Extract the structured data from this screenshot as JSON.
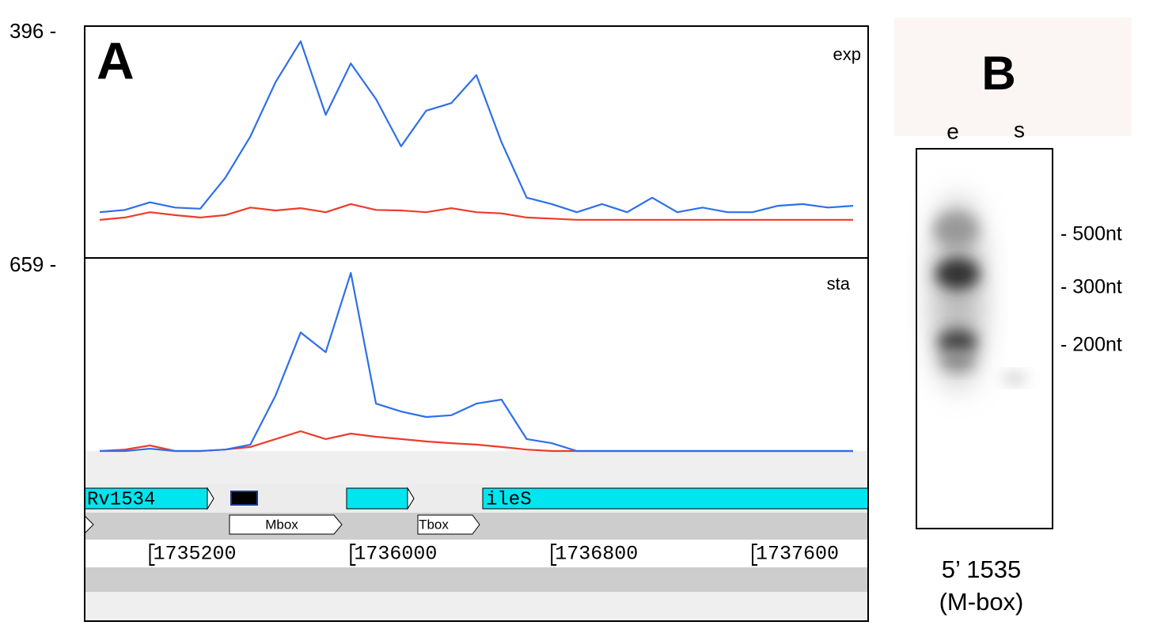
{
  "panel_a": {
    "label": "A"
  },
  "chart_data": [
    {
      "type": "line",
      "label": "exp",
      "x": [
        1735000,
        1735100,
        1735200,
        1735300,
        1735400,
        1735500,
        1735600,
        1735700,
        1735800,
        1735900,
        1736000,
        1736100,
        1736200,
        1736300,
        1736400,
        1736500,
        1736600,
        1736700,
        1736800,
        1736900,
        1737000,
        1737100,
        1737200,
        1737300,
        1737400,
        1737500,
        1737600,
        1737700,
        1737800,
        1737900,
        1738000
      ],
      "series": [
        {
          "color": "#2f6fe8",
          "values": [
            77,
            81,
            94,
            85,
            83,
            136,
            207,
            300,
            370,
            244,
            332,
            271,
            190,
            251,
            264,
            312,
            197,
            102,
            91,
            77,
            91,
            77,
            102,
            77,
            85,
            77,
            77,
            88,
            91,
            85,
            88
          ]
        },
        {
          "color": "#ee3b2b",
          "values": [
            64,
            68,
            77,
            72,
            68,
            72,
            85,
            80,
            84,
            77,
            91,
            81,
            80,
            77,
            84,
            77,
            75,
            68,
            66,
            64,
            64,
            64,
            64,
            64,
            64,
            64,
            64,
            64,
            64,
            64,
            64
          ]
        }
      ],
      "xlim": [
        1734940,
        1738060
      ],
      "ylim": [
        0,
        396
      ],
      "yticks": [
        {
          "value": 396,
          "label": "396 -"
        }
      ]
    },
    {
      "type": "line",
      "label": "sta",
      "x": [
        1735000,
        1735100,
        1735200,
        1735300,
        1735400,
        1735500,
        1735600,
        1735700,
        1735800,
        1735900,
        1736000,
        1736100,
        1736200,
        1736300,
        1736400,
        1736500,
        1736600,
        1736700,
        1736800,
        1736900,
        1737000,
        1737100,
        1737200,
        1737300,
        1737400,
        1737500,
        1737600,
        1737700,
        1737800,
        1737900,
        1738000
      ],
      "series": [
        {
          "color": "#2f6fe8",
          "values": [
            0,
            0,
            8,
            0,
            0,
            5,
            22,
            191,
            408,
            340,
            613,
            163,
            136,
            117,
            123,
            163,
            177,
            41,
            27,
            0,
            0,
            0,
            0,
            0,
            0,
            0,
            0,
            0,
            0,
            0,
            0
          ]
        },
        {
          "color": "#ee3b2b",
          "values": [
            0,
            5,
            19,
            0,
            0,
            5,
            14,
            41,
            68,
            41,
            60,
            49,
            41,
            33,
            27,
            22,
            14,
            5,
            0,
            0,
            0,
            0,
            0,
            0,
            0,
            0,
            0,
            0,
            0,
            0,
            0
          ]
        }
      ],
      "xlim": [
        1734940,
        1738060
      ],
      "ylim": [
        0,
        659
      ],
      "yticks": [
        {
          "value": 659,
          "label": "659  -"
        }
      ],
      "xticks": [
        1735200,
        1736000,
        1736800,
        1737600
      ]
    }
  ],
  "annotation": {
    "genes": [
      "Rv1534",
      "ileS"
    ],
    "features": [
      "Mbox",
      "Tbox"
    ]
  },
  "panel_b": {
    "label": "B",
    "lanes": [
      "e",
      "s"
    ],
    "markers": [
      "- 500nt",
      "- 300nt",
      "- 200nt"
    ],
    "caption": [
      "5’ 1535",
      "(M-box)"
    ]
  }
}
